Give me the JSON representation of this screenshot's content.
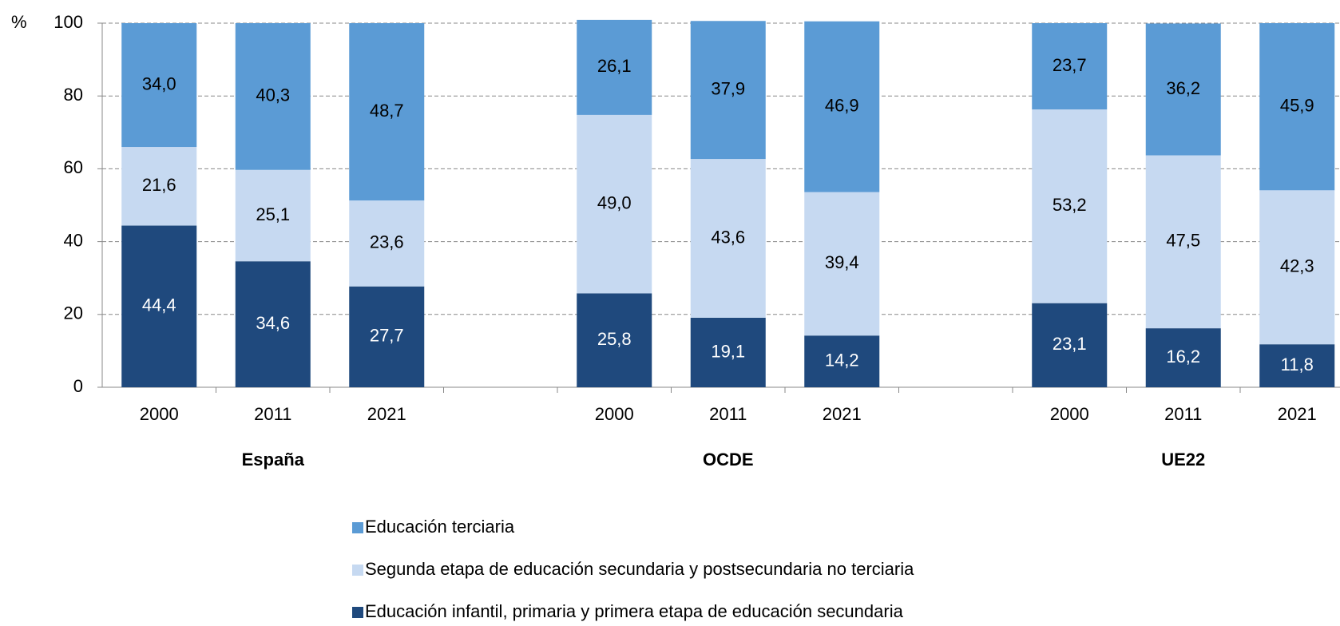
{
  "chart_data": {
    "type": "stacked_bar",
    "y_label": "%",
    "groups": [
      "España",
      "OCDE",
      "UE22"
    ],
    "categories": [
      "2000",
      "2011",
      "2021",
      "2000",
      "2011",
      "2021",
      "2000",
      "2011",
      "2021"
    ],
    "series": [
      {
        "name": "Educación terciaria",
        "color": "#5b9bd5",
        "values": [
          34.0,
          40.3,
          48.7,
          26.1,
          37.9,
          46.9,
          23.7,
          36.2,
          45.9
        ],
        "value_labels": [
          "34,0",
          "40,3",
          "48,7",
          "26,1",
          "37,9",
          "46,9",
          "23,7",
          "36,2",
          "45,9"
        ]
      },
      {
        "name": "Segunda etapa de educación secundaria y postsecundaria no terciaria",
        "color": "#c6d9f1",
        "values": [
          21.6,
          25.1,
          23.6,
          49.0,
          43.6,
          39.4,
          53.2,
          47.5,
          42.3
        ],
        "value_labels": [
          "21,6",
          "25,1",
          "23,6",
          "49,0",
          "43,6",
          "39,4",
          "53,2",
          "47,5",
          "42,3"
        ]
      },
      {
        "name": "Educación infantil, primaria y primera etapa de educación secundaria",
        "color": "#1f497d",
        "values": [
          44.4,
          34.6,
          27.7,
          25.8,
          19.1,
          14.2,
          23.1,
          16.2,
          11.8
        ],
        "value_labels": [
          "44,4",
          "34,6",
          "27,7",
          "25,8",
          "19,1",
          "14,2",
          "23,1",
          "16,2",
          "11,8"
        ]
      }
    ],
    "ylim": [
      0,
      100
    ],
    "yticks": [
      0,
      20,
      40,
      60,
      80,
      100
    ],
    "grid": true,
    "legend": "bottom"
  }
}
